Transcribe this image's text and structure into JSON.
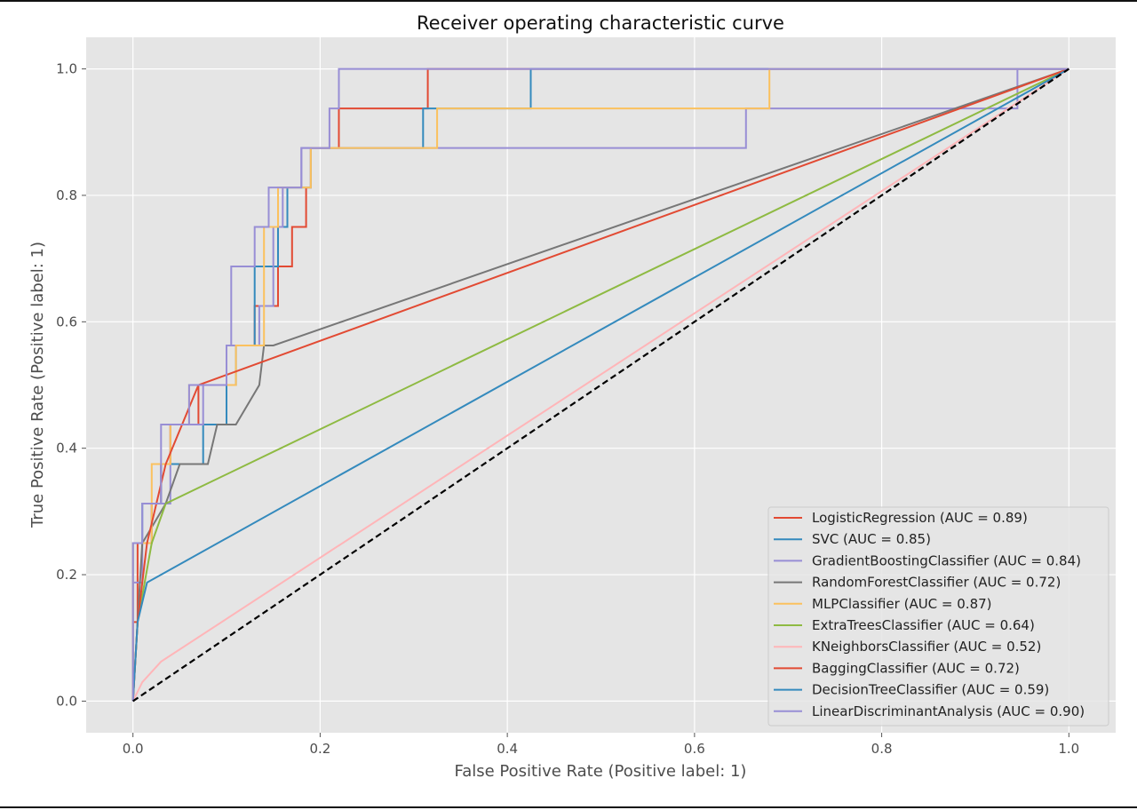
{
  "chart_data": {
    "type": "line",
    "title": "Receiver operating characteristic curve",
    "xlabel": "False Positive Rate (Positive label: 1)",
    "ylabel": "True Positive Rate (Positive label: 1)",
    "xlim": [
      -0.05,
      1.05
    ],
    "ylim": [
      -0.05,
      1.05
    ],
    "x_ticks": [
      "0.0",
      "0.2",
      "0.4",
      "0.6",
      "0.8",
      "1.0"
    ],
    "y_ticks": [
      "0.0",
      "0.2",
      "0.4",
      "0.6",
      "0.8",
      "1.0"
    ],
    "grid": true,
    "legend_position": "lower-right",
    "chance_line": {
      "x": [
        0,
        1
      ],
      "y": [
        0,
        1
      ],
      "color": "#000000",
      "style": "dashed"
    },
    "series": [
      {
        "name": "LogisticRegression (AUC = 0.89)",
        "color": "#e24a33",
        "x": [
          0,
          0,
          0.005,
          0.005,
          0.02,
          0.02,
          0.03,
          0.03,
          0.04,
          0.04,
          0.07,
          0.07,
          0.1,
          0.1,
          0.13,
          0.13,
          0.155,
          0.155,
          0.17,
          0.17,
          0.185,
          0.185,
          0.19,
          0.19,
          0.22,
          0.22,
          0.315,
          0.315,
          1
        ],
        "y": [
          0,
          0.125,
          0.125,
          0.25,
          0.25,
          0.3125,
          0.3125,
          0.375,
          0.375,
          0.4375,
          0.4375,
          0.5,
          0.5,
          0.5625,
          0.5625,
          0.625,
          0.625,
          0.6875,
          0.6875,
          0.75,
          0.75,
          0.8125,
          0.8125,
          0.875,
          0.875,
          0.9375,
          0.9375,
          1,
          1
        ]
      },
      {
        "name": "SVC (AUC = 0.85)",
        "color": "#348abd",
        "x": [
          0,
          0,
          0.01,
          0.01,
          0.03,
          0.03,
          0.075,
          0.075,
          0.1,
          0.1,
          0.11,
          0.11,
          0.13,
          0.13,
          0.155,
          0.155,
          0.165,
          0.165,
          0.19,
          0.19,
          0.31,
          0.31,
          0.425,
          0.425,
          0.565,
          0.565,
          1
        ],
        "y": [
          0,
          0.25,
          0.25,
          0.3125,
          0.3125,
          0.375,
          0.375,
          0.4375,
          0.4375,
          0.5,
          0.5,
          0.5625,
          0.5625,
          0.6875,
          0.6875,
          0.75,
          0.75,
          0.8125,
          0.8125,
          0.875,
          0.875,
          0.9375,
          0.9375,
          1,
          1,
          1,
          1
        ]
      },
      {
        "name": "GradientBoostingClassifier (AUC = 0.84)",
        "color": "#988ed5",
        "x": [
          0,
          0,
          0.01,
          0.01,
          0.02,
          0.02,
          0.04,
          0.04,
          0.075,
          0.075,
          0.1,
          0.1,
          0.135,
          0.135,
          0.15,
          0.15,
          0.16,
          0.16,
          0.18,
          0.18,
          0.655,
          0.655,
          0.945,
          0.945,
          1
        ],
        "y": [
          0,
          0.1875,
          0.1875,
          0.25,
          0.25,
          0.3125,
          0.3125,
          0.4375,
          0.4375,
          0.5,
          0.5,
          0.5625,
          0.5625,
          0.625,
          0.625,
          0.75,
          0.75,
          0.8125,
          0.8125,
          0.875,
          0.875,
          0.9375,
          0.9375,
          1,
          1
        ]
      },
      {
        "name": "RandomForestClassifier (AUC = 0.72)",
        "color": "#777777",
        "x": [
          0,
          0.005,
          0.01,
          0.035,
          0.05,
          0.08,
          0.09,
          0.11,
          0.135,
          0.14,
          0.15,
          1
        ],
        "y": [
          0,
          0.125,
          0.25,
          0.3125,
          0.375,
          0.375,
          0.4375,
          0.4375,
          0.5,
          0.5625,
          0.5625,
          1
        ]
      },
      {
        "name": "MLPClassifier (AUC = 0.87)",
        "color": "#fbc15e",
        "x": [
          0,
          0,
          0.02,
          0.02,
          0.04,
          0.04,
          0.06,
          0.06,
          0.11,
          0.11,
          0.14,
          0.14,
          0.155,
          0.155,
          0.19,
          0.19,
          0.325,
          0.325,
          0.68,
          0.68,
          1
        ],
        "y": [
          0,
          0.25,
          0.25,
          0.375,
          0.375,
          0.4375,
          0.4375,
          0.5,
          0.5,
          0.5625,
          0.5625,
          0.75,
          0.75,
          0.8125,
          0.8125,
          0.875,
          0.875,
          0.9375,
          0.9375,
          1,
          1
        ]
      },
      {
        "name": "ExtraTreesClassifier (AUC = 0.64)",
        "color": "#8eba42",
        "x": [
          0,
          0.005,
          0.02,
          0.035,
          1
        ],
        "y": [
          0,
          0.125,
          0.25,
          0.3125,
          1
        ]
      },
      {
        "name": "KNeighborsClassifier (AUC = 0.52)",
        "color": "#ffb5b8",
        "x": [
          0,
          0.01,
          0.03,
          1
        ],
        "y": [
          0,
          0.03,
          0.0625,
          1
        ]
      },
      {
        "name": "BaggingClassifier (AUC = 0.72)",
        "color": "#e24a33",
        "x": [
          0,
          0.005,
          0.015,
          0.035,
          0.07,
          1
        ],
        "y": [
          0,
          0.125,
          0.25,
          0.375,
          0.5,
          1
        ]
      },
      {
        "name": "DecisionTreeClassifier (AUC = 0.59)",
        "color": "#348abd",
        "x": [
          0,
          0.005,
          0.015,
          1
        ],
        "y": [
          0,
          0.125,
          0.1875,
          1
        ]
      },
      {
        "name": "LinearDiscriminantAnalysis (AUC = 0.90)",
        "color": "#988ed5",
        "x": [
          0,
          0,
          0.01,
          0.01,
          0.03,
          0.03,
          0.06,
          0.06,
          0.1,
          0.1,
          0.105,
          0.105,
          0.13,
          0.13,
          0.145,
          0.145,
          0.18,
          0.18,
          0.21,
          0.21,
          0.22,
          0.22,
          0.945,
          0.945,
          1
        ],
        "y": [
          0,
          0.25,
          0.25,
          0.3125,
          0.3125,
          0.4375,
          0.4375,
          0.5,
          0.5,
          0.5625,
          0.5625,
          0.6875,
          0.6875,
          0.75,
          0.75,
          0.8125,
          0.8125,
          0.875,
          0.875,
          0.9375,
          0.9375,
          1,
          1,
          1,
          1
        ]
      }
    ]
  }
}
